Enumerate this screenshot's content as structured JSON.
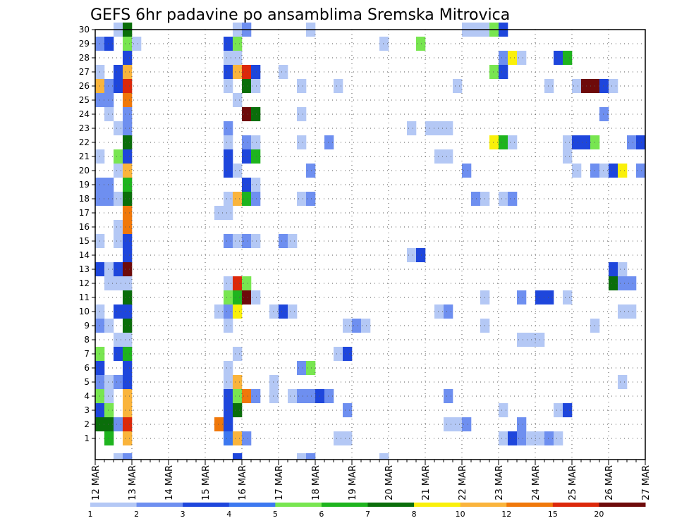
{
  "chart_data": {
    "type": "heatmap",
    "title": "GEFS 6hr padavine po ansamblima Sremska Mitrovica",
    "xlabel": "",
    "ylabel": "",
    "x_ticks": [
      "12 MAR",
      "13 MAR",
      "14 MAR",
      "15 MAR",
      "16 MAR",
      "17 MAR",
      "18 MAR",
      "19 MAR",
      "20 MAR",
      "21 MAR",
      "22 MAR",
      "23 MAR",
      "24 MAR",
      "25 MAR",
      "26 MAR",
      "27 MAR"
    ],
    "y_ticks": [
      1,
      2,
      3,
      4,
      5,
      6,
      7,
      8,
      9,
      10,
      11,
      12,
      13,
      14,
      15,
      16,
      17,
      18,
      19,
      20,
      21,
      22,
      23,
      24,
      25,
      26,
      27,
      28,
      29,
      30
    ],
    "steps_per_day": 4,
    "legend": {
      "labels": [
        "1",
        "2",
        "3",
        "4",
        "5",
        "6",
        "7",
        "8",
        "10",
        "12",
        "15",
        "20"
      ],
      "colors": [
        "#b4c8f5",
        "#6e8ff0",
        "#1e46dc",
        "#3c78f0",
        "#78e650",
        "#1eb41e",
        "#0a6e0a",
        "#faf00a",
        "#fab43c",
        "#f0780a",
        "#dc280a",
        "#6e0a0a"
      ]
    },
    "cells": [
      [
        1,
        1,
        6
      ],
      [
        1,
        3,
        10
      ],
      [
        1,
        14,
        4
      ],
      [
        1,
        15,
        10
      ],
      [
        1,
        16,
        2
      ],
      [
        1,
        26,
        1
      ],
      [
        1,
        27,
        1
      ],
      [
        1,
        44,
        1
      ],
      [
        1,
        45,
        3
      ],
      [
        1,
        46,
        2
      ],
      [
        1,
        47,
        1
      ],
      [
        1,
        48,
        1
      ],
      [
        1,
        49,
        2
      ],
      [
        1,
        50,
        1
      ],
      [
        2,
        0,
        7
      ],
      [
        2,
        1,
        7
      ],
      [
        2,
        2,
        2
      ],
      [
        2,
        3,
        15
      ],
      [
        2,
        13,
        12
      ],
      [
        2,
        14,
        3
      ],
      [
        2,
        38,
        1
      ],
      [
        2,
        39,
        1
      ],
      [
        2,
        40,
        2
      ],
      [
        2,
        46,
        2
      ],
      [
        3,
        0,
        3
      ],
      [
        3,
        1,
        5
      ],
      [
        3,
        3,
        10
      ],
      [
        3,
        14,
        3
      ],
      [
        3,
        15,
        7
      ],
      [
        3,
        27,
        2
      ],
      [
        3,
        44,
        1
      ],
      [
        3,
        50,
        1
      ],
      [
        3,
        51,
        3
      ],
      [
        4,
        0,
        5
      ],
      [
        4,
        1,
        1
      ],
      [
        4,
        3,
        10
      ],
      [
        4,
        14,
        3
      ],
      [
        4,
        15,
        5
      ],
      [
        4,
        16,
        12
      ],
      [
        4,
        17,
        2
      ],
      [
        4,
        19,
        1
      ],
      [
        4,
        21,
        1
      ],
      [
        4,
        22,
        2
      ],
      [
        4,
        23,
        2
      ],
      [
        4,
        24,
        3
      ],
      [
        4,
        25,
        2
      ],
      [
        4,
        38,
        2
      ],
      [
        5,
        0,
        2
      ],
      [
        5,
        1,
        1
      ],
      [
        5,
        2,
        2
      ],
      [
        5,
        3,
        3
      ],
      [
        5,
        14,
        1
      ],
      [
        5,
        15,
        10
      ],
      [
        5,
        19,
        1
      ],
      [
        5,
        57,
        1
      ],
      [
        6,
        0,
        3
      ],
      [
        6,
        3,
        3
      ],
      [
        6,
        14,
        1
      ],
      [
        6,
        22,
        2
      ],
      [
        6,
        23,
        5
      ],
      [
        7,
        0,
        5
      ],
      [
        7,
        2,
        3
      ],
      [
        7,
        3,
        6
      ],
      [
        7,
        15,
        1
      ],
      [
        7,
        26,
        1
      ],
      [
        7,
        27,
        3
      ],
      [
        8,
        2,
        1
      ],
      [
        8,
        3,
        1
      ],
      [
        8,
        46,
        1
      ],
      [
        8,
        47,
        1
      ],
      [
        8,
        48,
        1
      ],
      [
        9,
        0,
        2
      ],
      [
        9,
        1,
        1
      ],
      [
        9,
        3,
        7
      ],
      [
        9,
        14,
        1
      ],
      [
        9,
        27,
        1
      ],
      [
        9,
        28,
        2
      ],
      [
        9,
        29,
        1
      ],
      [
        9,
        42,
        1
      ],
      [
        9,
        54,
        1
      ],
      [
        10,
        0,
        1
      ],
      [
        10,
        2,
        3
      ],
      [
        10,
        3,
        3
      ],
      [
        10,
        13,
        1
      ],
      [
        10,
        14,
        2
      ],
      [
        10,
        15,
        8
      ],
      [
        10,
        19,
        1
      ],
      [
        10,
        20,
        3
      ],
      [
        10,
        21,
        1
      ],
      [
        10,
        37,
        1
      ],
      [
        10,
        38,
        2
      ],
      [
        10,
        57,
        1
      ],
      [
        10,
        58,
        1
      ],
      [
        11,
        3,
        7
      ],
      [
        11,
        14,
        5
      ],
      [
        11,
        15,
        6
      ],
      [
        11,
        16,
        20
      ],
      [
        11,
        17,
        1
      ],
      [
        11,
        42,
        1
      ],
      [
        11,
        46,
        2
      ],
      [
        11,
        48,
        3
      ],
      [
        11,
        49,
        3
      ],
      [
        11,
        51,
        1
      ],
      [
        12,
        1,
        1
      ],
      [
        12,
        2,
        1
      ],
      [
        12,
        3,
        1
      ],
      [
        12,
        14,
        1
      ],
      [
        12,
        15,
        15
      ],
      [
        12,
        16,
        5
      ],
      [
        12,
        56,
        7
      ],
      [
        12,
        57,
        2
      ],
      [
        12,
        58,
        2
      ],
      [
        13,
        0,
        3
      ],
      [
        13,
        1,
        1
      ],
      [
        13,
        2,
        3
      ],
      [
        13,
        3,
        20
      ],
      [
        13,
        56,
        3
      ],
      [
        13,
        57,
        1
      ],
      [
        14,
        3,
        3
      ],
      [
        14,
        34,
        1
      ],
      [
        14,
        35,
        3
      ],
      [
        15,
        0,
        1
      ],
      [
        15,
        2,
        1
      ],
      [
        15,
        3,
        3
      ],
      [
        15,
        14,
        2
      ],
      [
        15,
        15,
        1
      ],
      [
        15,
        16,
        2
      ],
      [
        15,
        17,
        1
      ],
      [
        15,
        20,
        2
      ],
      [
        15,
        21,
        1
      ],
      [
        16,
        2,
        1
      ],
      [
        16,
        3,
        12
      ],
      [
        17,
        3,
        12
      ],
      [
        17,
        13,
        1
      ],
      [
        17,
        14,
        1
      ],
      [
        18,
        0,
        2
      ],
      [
        18,
        1,
        2
      ],
      [
        18,
        2,
        1
      ],
      [
        18,
        3,
        7
      ],
      [
        18,
        14,
        1
      ],
      [
        18,
        15,
        10
      ],
      [
        18,
        16,
        6
      ],
      [
        18,
        17,
        2
      ],
      [
        18,
        22,
        1
      ],
      [
        18,
        23,
        2
      ],
      [
        18,
        41,
        2
      ],
      [
        18,
        42,
        1
      ],
      [
        18,
        44,
        1
      ],
      [
        18,
        45,
        2
      ],
      [
        19,
        0,
        2
      ],
      [
        19,
        1,
        2
      ],
      [
        19,
        3,
        6
      ],
      [
        19,
        16,
        3
      ],
      [
        19,
        17,
        1
      ],
      [
        20,
        2,
        1
      ],
      [
        20,
        3,
        10
      ],
      [
        20,
        14,
        3
      ],
      [
        20,
        15,
        1
      ],
      [
        20,
        23,
        2
      ],
      [
        20,
        40,
        2
      ],
      [
        20,
        52,
        1
      ],
      [
        20,
        54,
        2
      ],
      [
        20,
        55,
        1
      ],
      [
        20,
        56,
        3
      ],
      [
        20,
        57,
        8
      ],
      [
        20,
        59,
        2
      ],
      [
        21,
        0,
        1
      ],
      [
        21,
        2,
        5
      ],
      [
        21,
        3,
        3
      ],
      [
        21,
        14,
        3
      ],
      [
        21,
        16,
        3
      ],
      [
        21,
        17,
        6
      ],
      [
        21,
        37,
        1
      ],
      [
        21,
        38,
        1
      ],
      [
        21,
        51,
        1
      ],
      [
        22,
        3,
        7
      ],
      [
        22,
        14,
        1
      ],
      [
        22,
        16,
        2
      ],
      [
        22,
        17,
        1
      ],
      [
        22,
        22,
        1
      ],
      [
        22,
        25,
        2
      ],
      [
        22,
        43,
        8
      ],
      [
        22,
        44,
        6
      ],
      [
        22,
        45,
        1
      ],
      [
        22,
        51,
        1
      ],
      [
        22,
        52,
        3
      ],
      [
        22,
        53,
        3
      ],
      [
        22,
        54,
        5
      ],
      [
        22,
        58,
        2
      ],
      [
        22,
        59,
        3
      ],
      [
        23,
        2,
        1
      ],
      [
        23,
        3,
        2
      ],
      [
        23,
        14,
        2
      ],
      [
        23,
        34,
        1
      ],
      [
        23,
        36,
        1
      ],
      [
        23,
        37,
        1
      ],
      [
        23,
        38,
        1
      ],
      [
        24,
        1,
        1
      ],
      [
        24,
        3,
        2
      ],
      [
        24,
        16,
        20
      ],
      [
        24,
        17,
        7
      ],
      [
        24,
        22,
        1
      ],
      [
        24,
        55,
        2
      ],
      [
        25,
        0,
        2
      ],
      [
        25,
        1,
        2
      ],
      [
        25,
        3,
        12
      ],
      [
        25,
        15,
        1
      ],
      [
        26,
        0,
        10
      ],
      [
        26,
        1,
        2
      ],
      [
        26,
        2,
        3
      ],
      [
        26,
        3,
        15
      ],
      [
        26,
        14,
        1
      ],
      [
        26,
        16,
        7
      ],
      [
        26,
        17,
        1
      ],
      [
        26,
        22,
        1
      ],
      [
        26,
        26,
        1
      ],
      [
        26,
        39,
        1
      ],
      [
        26,
        49,
        1
      ],
      [
        26,
        52,
        1
      ],
      [
        26,
        53,
        20
      ],
      [
        26,
        54,
        20
      ],
      [
        26,
        55,
        3
      ],
      [
        26,
        56,
        1
      ],
      [
        27,
        0,
        1
      ],
      [
        27,
        2,
        3
      ],
      [
        27,
        3,
        10
      ],
      [
        27,
        14,
        3
      ],
      [
        27,
        15,
        10
      ],
      [
        27,
        16,
        15
      ],
      [
        27,
        17,
        3
      ],
      [
        27,
        20,
        1
      ],
      [
        27,
        43,
        5
      ],
      [
        27,
        44,
        3
      ],
      [
        28,
        3,
        3
      ],
      [
        28,
        14,
        1
      ],
      [
        28,
        15,
        1
      ],
      [
        28,
        44,
        2
      ],
      [
        28,
        45,
        8
      ],
      [
        28,
        46,
        1
      ],
      [
        28,
        50,
        3
      ],
      [
        28,
        51,
        6
      ],
      [
        29,
        0,
        2
      ],
      [
        29,
        1,
        3
      ],
      [
        29,
        3,
        5
      ],
      [
        29,
        4,
        1
      ],
      [
        29,
        14,
        3
      ],
      [
        29,
        15,
        5
      ],
      [
        29,
        31,
        1
      ],
      [
        29,
        35,
        5
      ],
      [
        30,
        2,
        1
      ],
      [
        30,
        3,
        7
      ],
      [
        30,
        15,
        1
      ],
      [
        30,
        16,
        2
      ],
      [
        30,
        23,
        1
      ],
      [
        30,
        40,
        1
      ],
      [
        30,
        41,
        1
      ],
      [
        30,
        42,
        1
      ],
      [
        30,
        43,
        5
      ],
      [
        30,
        44,
        3
      ],
      [
        0,
        2,
        1
      ],
      [
        0,
        3,
        2
      ],
      [
        0,
        15,
        3
      ],
      [
        0,
        22,
        1
      ],
      [
        0,
        23,
        2
      ],
      [
        0,
        31,
        1
      ]
    ]
  }
}
